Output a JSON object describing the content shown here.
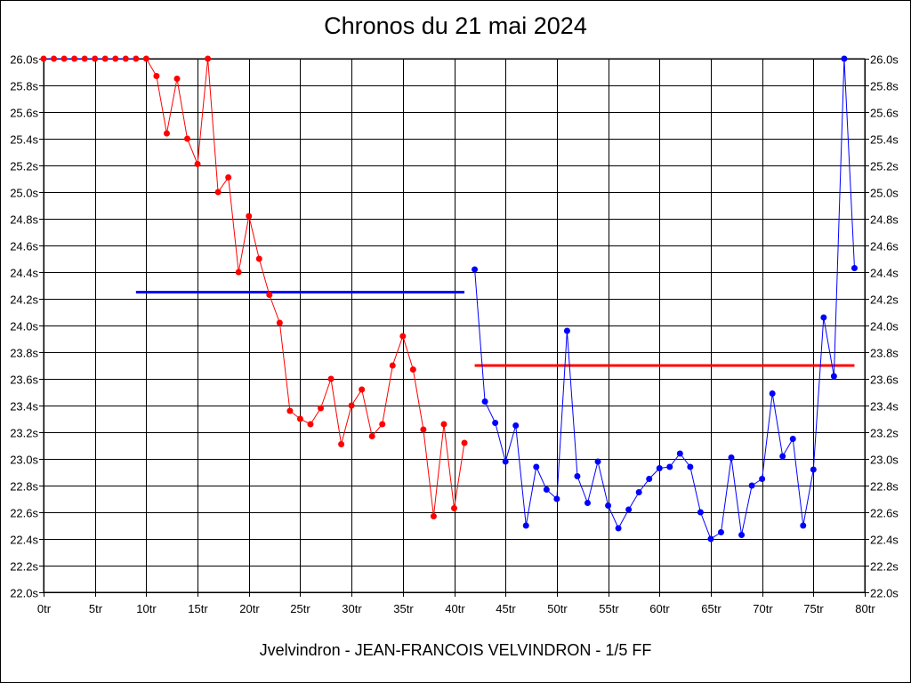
{
  "title": "Chronos du 21 mai 2024",
  "footer": "Jvelvindron - JEAN-FRANCOIS VELVINDRON - 1/5 FF",
  "chart_data": {
    "type": "line",
    "title": "Chronos du 21 mai 2024",
    "xlabel": "",
    "ylabel": "",
    "xlim": [
      0,
      80
    ],
    "ylim": [
      22.0,
      26.0
    ],
    "grid": true,
    "x_tick_labels": [
      "0tr",
      "5tr",
      "10tr",
      "15tr",
      "20tr",
      "25tr",
      "30tr",
      "35tr",
      "40tr",
      "45tr",
      "50tr",
      "55tr",
      "60tr",
      "65tr",
      "70tr",
      "75tr",
      "80tr"
    ],
    "y_tick_labels": [
      "22.0s",
      "22.2s",
      "22.4s",
      "22.6s",
      "22.8s",
      "23.0s",
      "23.2s",
      "23.4s",
      "23.6s",
      "23.8s",
      "24.0s",
      "24.2s",
      "24.4s",
      "24.6s",
      "24.8s",
      "25.0s",
      "25.2s",
      "25.4s",
      "25.6s",
      "25.8s",
      "26.0s"
    ],
    "series": [
      {
        "color": "#ff0000",
        "marker_color": "#ff0000",
        "x": [
          10,
          11,
          12,
          13,
          14,
          15,
          16,
          17,
          18,
          19,
          20,
          21,
          22,
          23,
          24,
          25,
          26,
          27,
          28,
          29,
          30,
          31,
          32,
          33,
          34,
          35,
          36,
          37,
          38,
          39,
          40,
          41
        ],
        "y": [
          26.0,
          25.87,
          25.44,
          25.85,
          25.4,
          25.21,
          26.0,
          25.0,
          25.11,
          24.4,
          24.82,
          24.5,
          24.23,
          24.02,
          23.36,
          23.3,
          23.26,
          23.38,
          23.6,
          23.11,
          23.4,
          23.52,
          23.17,
          23.26,
          23.7,
          23.92,
          23.67,
          23.22,
          22.57,
          23.26,
          22.63,
          23.12
        ]
      },
      {
        "color": "#0000ff",
        "marker_color": "#0000ff",
        "x": [
          42,
          43,
          44,
          45,
          46,
          47,
          48,
          49,
          50,
          51,
          52,
          53,
          54,
          55,
          56,
          57,
          58,
          59,
          60,
          61,
          62,
          63,
          64,
          65,
          66,
          67,
          68,
          69,
          70,
          71,
          72,
          73,
          74,
          75,
          76,
          77,
          78,
          79
        ],
        "y": [
          24.42,
          23.43,
          23.27,
          22.98,
          23.25,
          22.5,
          22.94,
          22.77,
          22.7,
          23.96,
          22.87,
          22.67,
          22.98,
          22.65,
          22.48,
          22.62,
          22.75,
          22.85,
          22.93,
          22.94,
          23.04,
          22.94,
          22.6,
          22.4,
          22.45,
          23.01,
          22.43,
          22.8,
          22.85,
          23.49,
          23.02,
          23.15,
          22.5,
          22.92,
          24.06,
          23.62,
          26.0,
          24.43
        ]
      },
      {
        "color": "#0000ff",
        "marker_color": "#ff0000",
        "x": [
          0,
          1,
          2,
          3,
          4,
          5,
          6,
          7,
          8,
          9
        ],
        "y": [
          26.0,
          26.0,
          26.0,
          26.0,
          26.0,
          26.0,
          26.0,
          26.0,
          26.0,
          26.0
        ]
      }
    ],
    "reference_lines": [
      {
        "color": "#0000ff",
        "x": [
          9,
          41
        ],
        "y": 24.25
      },
      {
        "color": "#ff0000",
        "x": [
          42,
          79
        ],
        "y": 23.7
      }
    ]
  }
}
